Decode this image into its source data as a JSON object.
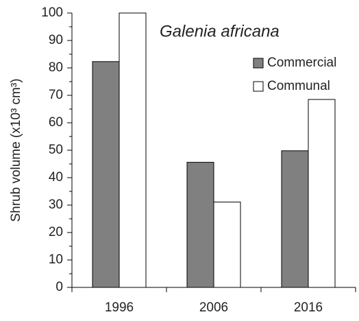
{
  "chart_data": {
    "type": "bar",
    "annotation": "Galenia africana",
    "y_label": "Shrub volume (x10³ cm³)",
    "categories": [
      "1996",
      "2006",
      "2016"
    ],
    "series": [
      {
        "name": "Commercial",
        "color": "#808080",
        "values": [
          82.3,
          45.6,
          49.8
        ]
      },
      {
        "name": "Communal",
        "color": "#ffffff",
        "values": [
          100,
          31.1,
          68.5
        ]
      }
    ],
    "ylim": [
      0,
      100
    ],
    "yticks": [
      0,
      10,
      20,
      30,
      40,
      50,
      60,
      70,
      80,
      90,
      100
    ],
    "grid": false,
    "legend": "upper right"
  }
}
